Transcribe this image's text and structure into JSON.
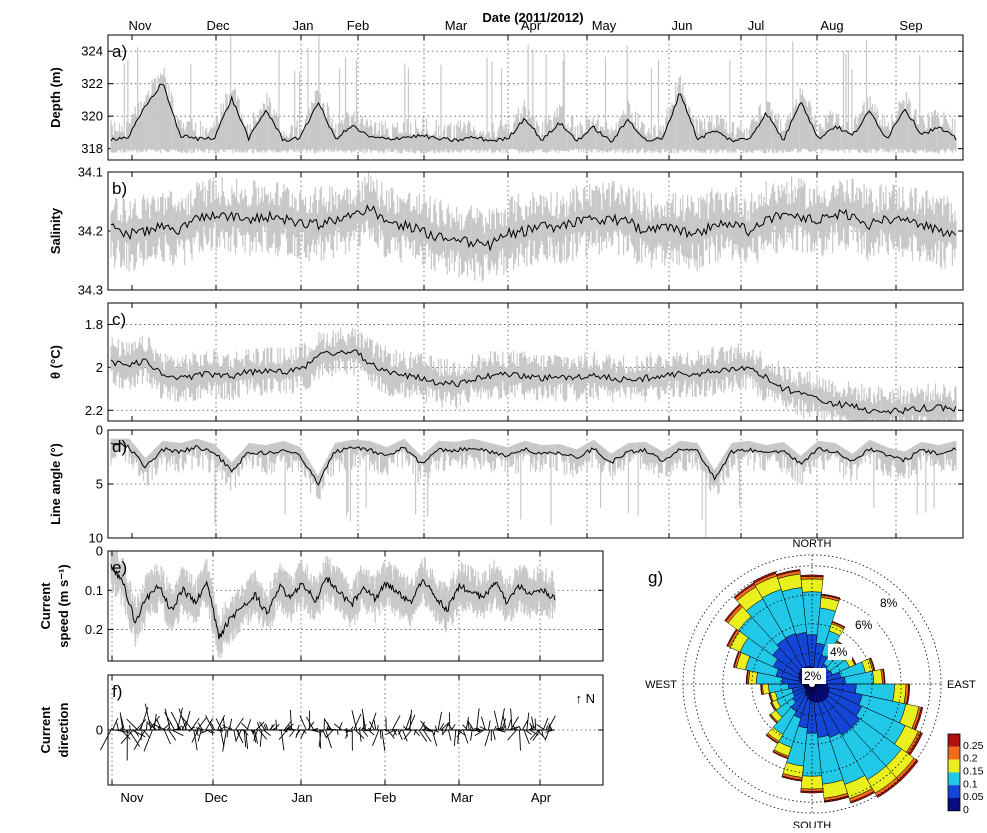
{
  "figure": {
    "top_title": "Date (2011/2012)",
    "colorbar": {
      "ticks": [
        "0.25",
        "0.2",
        "0.15",
        "0.1",
        "0.05",
        "0"
      ],
      "colors": [
        "#0a0a82",
        "#1346d6",
        "#21c8e8",
        "#e9f01e",
        "#f06a1a",
        "#b01010"
      ]
    }
  },
  "chart_data": [
    {
      "id": "a",
      "type": "line",
      "letter": "a)",
      "ylabel": "Depth (m)",
      "ylim": [
        325,
        317.3
      ],
      "yticks": [
        "318",
        "320",
        "322",
        "324"
      ],
      "ytick_values": [
        318,
        320,
        322,
        324
      ],
      "xticks": [
        "Nov",
        "Dec",
        "Jan",
        "Feb",
        "Mar",
        "Apr",
        "May",
        "Jun",
        "Jul",
        "Aug",
        "Sep"
      ],
      "mean_level": 318.5,
      "raw_range": [
        318,
        325
      ],
      "series": [
        {
          "values": [
            318.6,
            318.7,
            320.6,
            322.1,
            318.8,
            318.6,
            318.7,
            321.1,
            318.6,
            320.4,
            318.5,
            318.7,
            320.9,
            318.6,
            319.4,
            318.7,
            318.6,
            318.7,
            318.8,
            318.6,
            318.5,
            318.7,
            318.5,
            318.6,
            319.9,
            318.5,
            319.6,
            318.5,
            319.3,
            318.4,
            319.8,
            318.5,
            318.6,
            321.5,
            318.6,
            319.1,
            318.5,
            318.6,
            320.2,
            318.5,
            321.0,
            318.6,
            319.4,
            318.8,
            320.3,
            318.6,
            320.5,
            318.9,
            319.3,
            318.6
          ]
        }
      ]
    },
    {
      "id": "b",
      "type": "line",
      "letter": "b)",
      "ylabel": "Salinity",
      "ylim": [
        34.1,
        34.3
      ],
      "yticks": [
        "34.1",
        "34.2",
        "34.3"
      ],
      "ytick_values": [
        34.1,
        34.2,
        34.3
      ],
      "xticks": [
        "Nov",
        "Dec",
        "Jan",
        "Feb",
        "Mar",
        "Apr",
        "May",
        "Jun",
        "Jul",
        "Aug",
        "Sep"
      ],
      "series": [
        {
          "values": [
            34.195,
            34.205,
            34.2,
            34.19,
            34.2,
            34.18,
            34.17,
            34.175,
            34.18,
            34.175,
            34.18,
            34.185,
            34.19,
            34.18,
            34.175,
            34.16,
            34.185,
            34.19,
            34.2,
            34.21,
            34.215,
            34.22,
            34.225,
            34.205,
            34.2,
            34.19,
            34.195,
            34.185,
            34.18,
            34.18,
            34.185,
            34.2,
            34.195,
            34.2,
            34.205,
            34.19,
            34.185,
            34.2,
            34.18,
            34.17,
            34.175,
            34.185,
            34.17,
            34.175,
            34.19,
            34.18,
            34.185,
            34.19,
            34.2,
            34.205
          ]
        }
      ]
    },
    {
      "id": "c",
      "type": "line",
      "letter": "c)",
      "ylabel": "θ (°C)",
      "ylim": [
        1.7,
        2.25
      ],
      "yticks": [
        "1.8",
        "2",
        "2.2"
      ],
      "ytick_values": [
        1.8,
        2.0,
        2.2
      ],
      "xticks": [
        "Nov",
        "Dec",
        "Jan",
        "Feb",
        "Mar",
        "Apr",
        "May",
        "Jun",
        "Jul",
        "Aug",
        "Sep"
      ],
      "series": [
        {
          "values": [
            1.97,
            2.0,
            1.96,
            2.04,
            2.05,
            2.04,
            2.03,
            2.04,
            2.02,
            2.02,
            2.02,
            2.01,
            1.95,
            1.93,
            1.92,
            1.98,
            2.02,
            2.04,
            2.05,
            2.07,
            2.08,
            2.05,
            2.04,
            2.03,
            2.04,
            2.05,
            2.04,
            2.05,
            2.04,
            2.05,
            2.06,
            2.05,
            2.04,
            2.03,
            2.03,
            2.02,
            2.01,
            2.0,
            2.05,
            2.1,
            2.12,
            2.14,
            2.17,
            2.18,
            2.2,
            2.2,
            2.2,
            2.19,
            2.19,
            2.19
          ]
        }
      ]
    },
    {
      "id": "d",
      "type": "line",
      "letter": "d)",
      "ylabel": "Line angle (°)",
      "ylim": [
        0,
        10
      ],
      "yticks": [
        "0",
        "5",
        "10"
      ],
      "ytick_values": [
        0,
        5,
        10
      ],
      "xticks": [
        "Nov",
        "Dec",
        "Jan",
        "Feb",
        "Mar",
        "Apr",
        "May",
        "Jun",
        "Jul",
        "Aug",
        "Sep"
      ],
      "series": [
        {
          "values": [
            1.3,
            1.5,
            3.4,
            1.8,
            2.0,
            1.6,
            2.1,
            3.8,
            2.0,
            2.2,
            1.8,
            2.4,
            5.0,
            2.0,
            1.7,
            1.8,
            2.4,
            1.6,
            3.2,
            1.8,
            1.9,
            1.6,
            2.0,
            2.4,
            1.8,
            2.2,
            2.1,
            2.6,
            1.7,
            3.0,
            2.0,
            1.9,
            2.8,
            1.8,
            2.0,
            4.5,
            2.0,
            1.8,
            2.2,
            1.9,
            3.2,
            1.8,
            2.0,
            3.0,
            1.7,
            2.4,
            2.8,
            1.9,
            2.2,
            1.8
          ]
        }
      ]
    },
    {
      "id": "e",
      "type": "line",
      "letter": "e)",
      "ylabel": "Current",
      "ylabel2": "speed (m s⁻¹)",
      "ylim": [
        0,
        0.28
      ],
      "yticks": [
        "0",
        "0.1",
        "0.2"
      ],
      "ytick_values": [
        0,
        0.1,
        0.2
      ],
      "xticks": [
        "Nov",
        "Dec",
        "Jan",
        "Feb",
        "Mar",
        "Apr"
      ],
      "series": [
        {
          "values": [
            0.04,
            0.08,
            0.18,
            0.12,
            0.09,
            0.15,
            0.1,
            0.13,
            0.08,
            0.22,
            0.17,
            0.14,
            0.11,
            0.16,
            0.09,
            0.12,
            0.08,
            0.13,
            0.07,
            0.1,
            0.14,
            0.09,
            0.12,
            0.08,
            0.11,
            0.13,
            0.07,
            0.12,
            0.15,
            0.09,
            0.1,
            0.12,
            0.08,
            0.13,
            0.09,
            0.11,
            0.1,
            0.12
          ]
        }
      ]
    },
    {
      "id": "f",
      "type": "line",
      "letter": "f)",
      "ylabel": "Current",
      "ylabel2": "direction",
      "ylim": [
        -1,
        1
      ],
      "yticks": [
        "0"
      ],
      "ytick_values": [
        0
      ],
      "north_label": "↑ N",
      "xticks": [
        "Nov",
        "Dec",
        "Jan",
        "Feb",
        "Mar",
        "Apr"
      ]
    },
    {
      "id": "g",
      "type": "rose",
      "letter": "g)",
      "directions": [
        "NORTH",
        "EAST",
        "SOUTH",
        "WEST"
      ],
      "ring_labels": [
        "2%",
        "4%",
        "6%",
        "8%"
      ],
      "sector_totals": [
        7.4,
        6.1,
        4.4,
        3.3,
        3.0,
        3.2,
        4.3,
        4.9,
        6.6,
        7.7,
        8.2,
        8.9,
        8.9,
        8.5,
        8.1,
        7.4,
        6.6,
        5.3,
        4.6,
        3.5,
        3.0,
        2.9,
        3.4,
        4.4,
        5.4,
        6.3,
        7.3,
        7.9,
        8.0,
        7.8
      ]
    }
  ]
}
